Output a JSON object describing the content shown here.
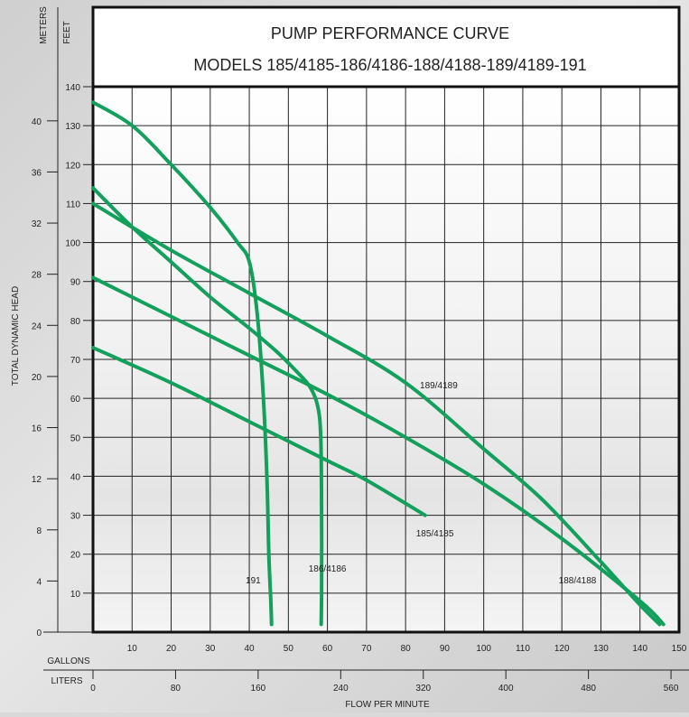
{
  "chart_data": {
    "type": "line",
    "title": "PUMP PERFORMANCE CURVE",
    "subtitle": "MODELS 185/4185-186/4186-188/4188-189/4189-191",
    "y_left_unit": "METERS",
    "y_feet_unit": "FEET",
    "ylabel": "TOTAL DYNAMIC HEAD",
    "x_gallons_unit": "GALLONS",
    "x_liters_unit": "LITERS",
    "xlabel": "FLOW PER MINUTE",
    "xlim": [
      0,
      150
    ],
    "ylim": [
      0,
      140
    ],
    "grid": true,
    "x_ticks_gallons": [
      10,
      20,
      30,
      40,
      50,
      60,
      70,
      80,
      90,
      100,
      110,
      120,
      130,
      140,
      150
    ],
    "x_ticks_liters": [
      0,
      80,
      160,
      240,
      320,
      400,
      480,
      560
    ],
    "y_ticks_feet": [
      10,
      20,
      30,
      40,
      50,
      60,
      70,
      80,
      90,
      100,
      110,
      120,
      130,
      140
    ],
    "y_ticks_meters": [
      0,
      4,
      8,
      12,
      16,
      20,
      24,
      28,
      32,
      36,
      40
    ],
    "line_color": "#12a05c",
    "series": [
      {
        "name": "191",
        "x": [
          0,
          10,
          20,
          30,
          37,
          40,
          42,
          43.5,
          44.5,
          45,
          45.5,
          45.7
        ],
        "y": [
          136,
          130,
          120,
          109,
          100,
          95,
          82,
          62,
          40,
          20,
          8,
          2
        ]
      },
      {
        "name": "186/4186",
        "x": [
          0,
          10,
          20,
          30,
          40,
          47,
          52,
          55.5,
          57.5,
          58.3,
          58.5,
          58.5,
          58.4
        ],
        "y": [
          114,
          104,
          95,
          86,
          78,
          72,
          67,
          63,
          58,
          50,
          30,
          10,
          2
        ]
      },
      {
        "name": "189/4189",
        "x": [
          0,
          20,
          40,
          60,
          80,
          100,
          115,
          130,
          140,
          145
        ],
        "y": [
          110,
          98,
          87,
          76,
          64,
          47,
          34,
          18,
          7,
          2
        ]
      },
      {
        "name": "188/4188",
        "x": [
          0,
          20,
          40,
          60,
          80,
          100,
          120,
          140,
          146
        ],
        "y": [
          91,
          81,
          71,
          61,
          50,
          38,
          24,
          8,
          2
        ]
      },
      {
        "name": "185/4185",
        "x": [
          0,
          20,
          40,
          60,
          70,
          85
        ],
        "y": [
          73,
          64,
          54,
          44,
          39,
          30
        ]
      }
    ],
    "labels": [
      {
        "text": "189/4189",
        "x": 88.5,
        "y": 63.5
      },
      {
        "text": "185/4185",
        "x": 87.5,
        "y": 25.5
      },
      {
        "text": "186/4186",
        "x": 60,
        "y": 16.5
      },
      {
        "text": "191",
        "x": 41,
        "y": 13.5
      },
      {
        "text": "188/4188",
        "x": 124,
        "y": 13.5
      }
    ]
  }
}
